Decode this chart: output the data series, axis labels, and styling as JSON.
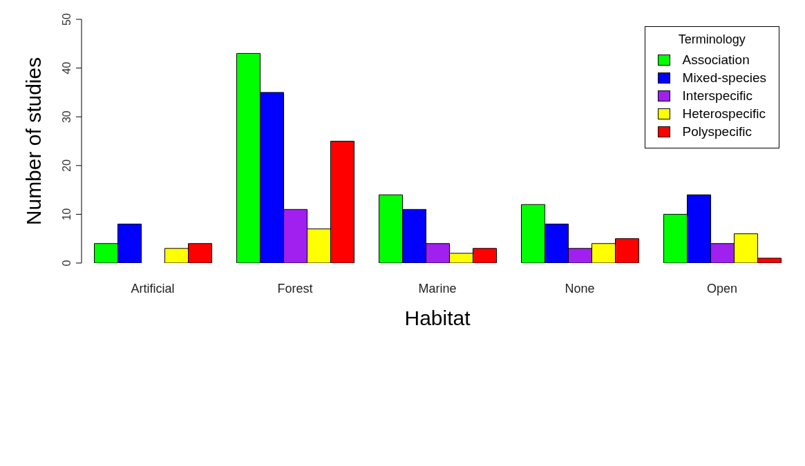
{
  "chart_data": {
    "type": "bar",
    "xlabel": "Habitat",
    "ylabel": "Number of studies",
    "legend_title": "Terminology",
    "categories": [
      "Artificial",
      "Forest",
      "Marine",
      "None",
      "Open"
    ],
    "series": [
      {
        "name": "Association",
        "color": "#00ff00",
        "values": [
          4,
          43,
          14,
          12,
          10
        ]
      },
      {
        "name": "Mixed-species",
        "color": "#0000ff",
        "values": [
          8,
          35,
          11,
          8,
          14
        ]
      },
      {
        "name": "Interspecific",
        "color": "#a020f0",
        "values": [
          0,
          11,
          4,
          3,
          4
        ]
      },
      {
        "name": "Heterospecific",
        "color": "#ffff00",
        "values": [
          3,
          7,
          2,
          4,
          6
        ]
      },
      {
        "name": "Polyspecific",
        "color": "#ff0000",
        "values": [
          4,
          25,
          3,
          5,
          1
        ]
      }
    ],
    "ylim": [
      0,
      50
    ],
    "yticks": [
      0,
      10,
      20,
      30,
      40,
      50
    ],
    "grid": false,
    "legend": "top right"
  }
}
